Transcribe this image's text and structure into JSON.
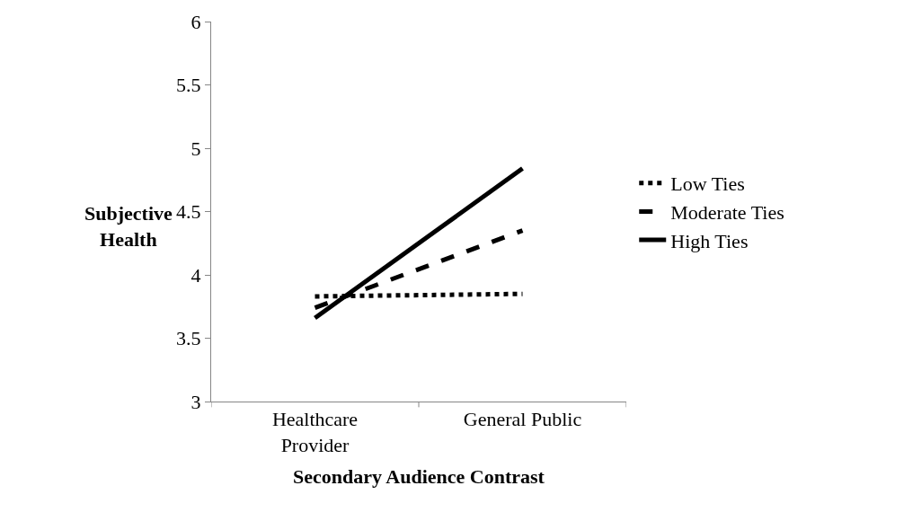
{
  "chart_data": {
    "type": "line",
    "xlabel": "Secondary Audience Contrast",
    "ylabel": "Subjective Health",
    "categories": [
      "Healthcare Provider",
      "General Public"
    ],
    "series": [
      {
        "name": "Low Ties",
        "color": "#000000",
        "values": [
          3.83,
          3.85
        ],
        "line_style": "dotted"
      },
      {
        "name": "Moderate Ties",
        "color": "#000000",
        "values": [
          3.74,
          4.35
        ],
        "line_style": "dashed"
      },
      {
        "name": "High Ties",
        "color": "#000000",
        "values": [
          3.66,
          4.84
        ],
        "line_style": "solid"
      }
    ],
    "ylim": [
      3,
      6
    ],
    "yticks": [
      3,
      3.5,
      4,
      4.5,
      5,
      5.5,
      6
    ],
    "legend": "right",
    "marker": "none"
  }
}
